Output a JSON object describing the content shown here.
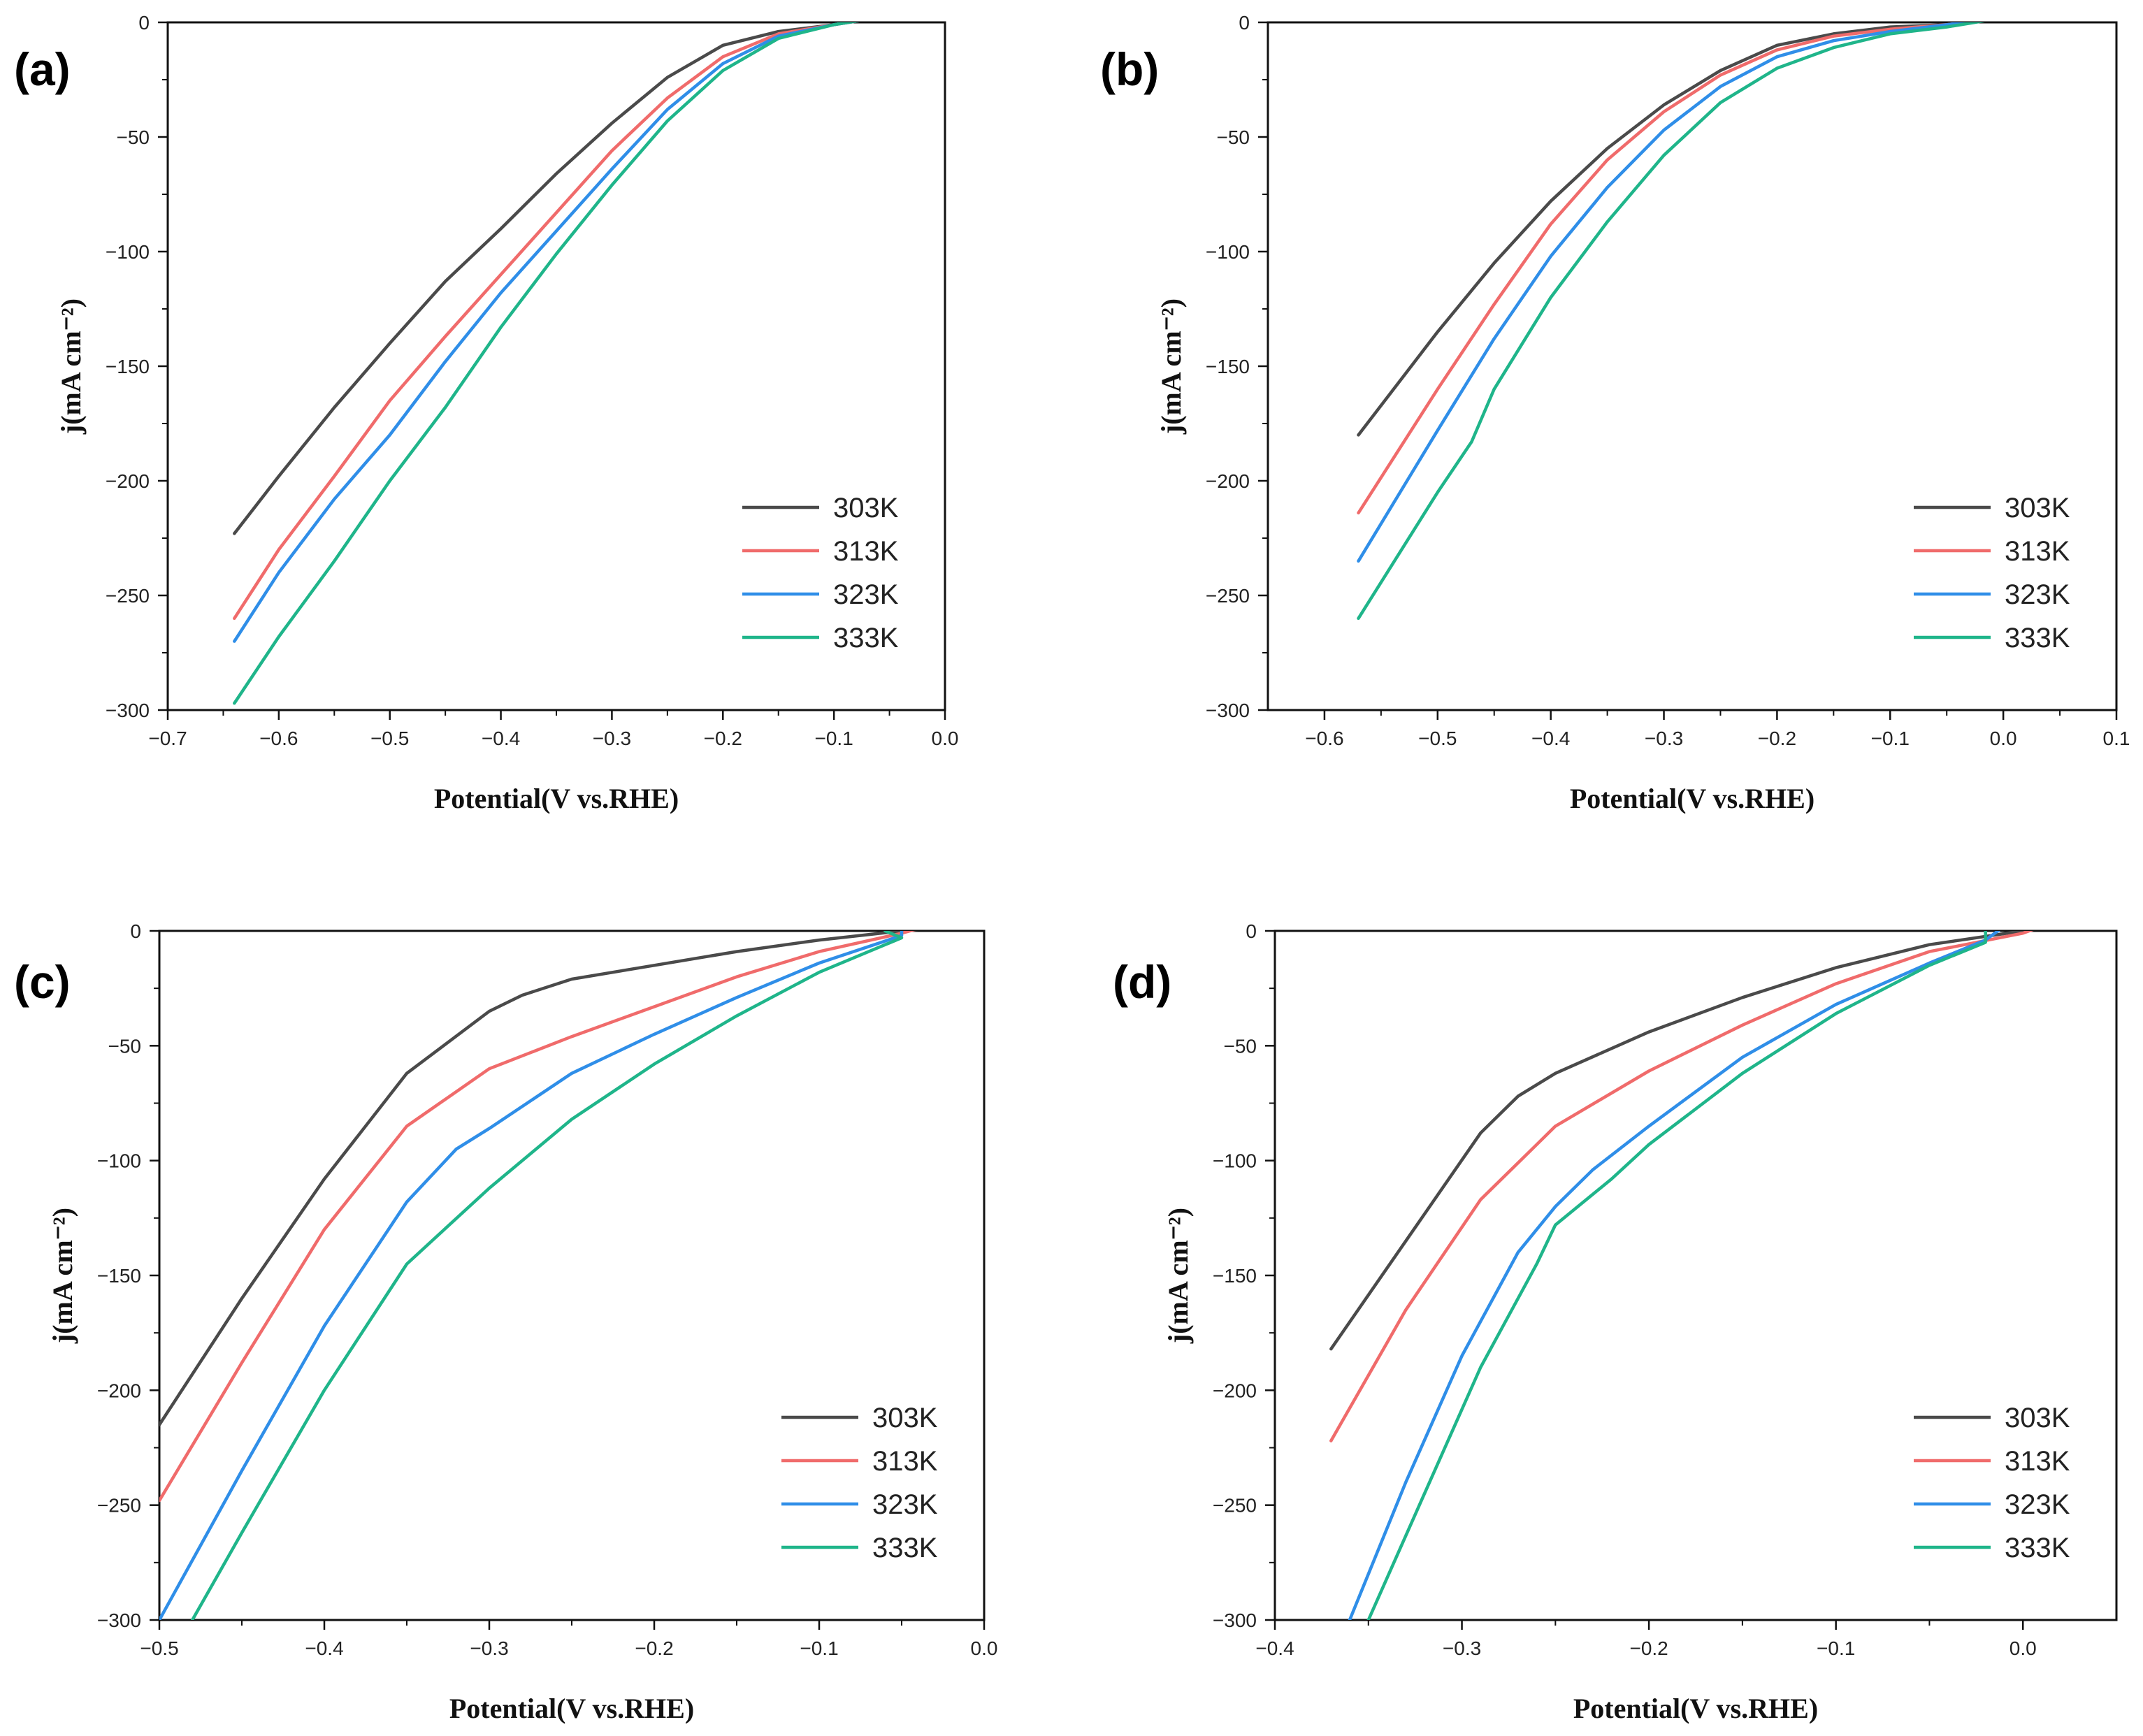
{
  "colors": {
    "303K": "#4a4a4a",
    "313K": "#f06b6b",
    "323K": "#2f8ee8",
    "333K": "#1fb58a"
  },
  "chart_data": [
    {
      "type": "line",
      "panel": "(a)",
      "xlabel": "Potential(V vs.RHE)",
      "ylabel": "j(mA cm⁻²)",
      "xlim": [
        -0.7,
        0.0
      ],
      "ylim": [
        -300,
        0
      ],
      "xticks": [
        -0.7,
        -0.6,
        -0.5,
        -0.4,
        -0.3,
        -0.2,
        -0.1,
        0.0
      ],
      "xtick_labels": [
        "−0.7",
        "−0.6",
        "−0.5",
        "−0.4",
        "−0.3",
        "−0.2",
        "−0.1",
        "0.0"
      ],
      "yticks": [
        0,
        -50,
        -100,
        -150,
        -200,
        -250,
        -300
      ],
      "ytick_labels": [
        "0",
        "−50",
        "−100",
        "−150",
        "−200",
        "−250",
        "−300"
      ],
      "legend_position": "lower-right",
      "series": [
        {
          "name": "303K",
          "color_key": "303K",
          "points": [
            [
              -0.64,
              -223
            ],
            [
              -0.6,
              -198
            ],
            [
              -0.55,
              -168
            ],
            [
              -0.5,
              -140
            ],
            [
              -0.45,
              -113
            ],
            [
              -0.4,
              -90
            ],
            [
              -0.35,
              -66
            ],
            [
              -0.3,
              -44
            ],
            [
              -0.25,
              -24
            ],
            [
              -0.2,
              -10
            ],
            [
              -0.15,
              -4
            ],
            [
              -0.1,
              -1
            ],
            [
              -0.06,
              2
            ]
          ]
        },
        {
          "name": "313K",
          "color_key": "313K",
          "points": [
            [
              -0.64,
              -260
            ],
            [
              -0.6,
              -230
            ],
            [
              -0.55,
              -198
            ],
            [
              -0.5,
              -165
            ],
            [
              -0.45,
              -137
            ],
            [
              -0.4,
              -110
            ],
            [
              -0.35,
              -83
            ],
            [
              -0.3,
              -56
            ],
            [
              -0.25,
              -33
            ],
            [
              -0.2,
              -15
            ],
            [
              -0.15,
              -5
            ],
            [
              -0.1,
              -1
            ],
            [
              -0.06,
              2
            ]
          ]
        },
        {
          "name": "323K",
          "color_key": "323K",
          "points": [
            [
              -0.64,
              -270
            ],
            [
              -0.6,
              -240
            ],
            [
              -0.55,
              -208
            ],
            [
              -0.5,
              -180
            ],
            [
              -0.45,
              -148
            ],
            [
              -0.4,
              -118
            ],
            [
              -0.35,
              -91
            ],
            [
              -0.3,
              -64
            ],
            [
              -0.25,
              -38
            ],
            [
              -0.2,
              -18
            ],
            [
              -0.15,
              -6
            ],
            [
              -0.1,
              -1
            ],
            [
              -0.06,
              2
            ]
          ]
        },
        {
          "name": "333K",
          "color_key": "333K",
          "points": [
            [
              -0.64,
              -297
            ],
            [
              -0.6,
              -268
            ],
            [
              -0.55,
              -235
            ],
            [
              -0.5,
              -200
            ],
            [
              -0.45,
              -168
            ],
            [
              -0.4,
              -133
            ],
            [
              -0.35,
              -101
            ],
            [
              -0.3,
              -71
            ],
            [
              -0.25,
              -43
            ],
            [
              -0.2,
              -21
            ],
            [
              -0.15,
              -7
            ],
            [
              -0.1,
              -1
            ],
            [
              -0.06,
              2
            ]
          ]
        }
      ]
    },
    {
      "type": "line",
      "panel": "(b)",
      "xlabel": "Potential(V vs.RHE)",
      "ylabel": "j(mA cm⁻²)",
      "xlim": [
        -0.65,
        0.1
      ],
      "ylim": [
        -300,
        0
      ],
      "xticks": [
        -0.6,
        -0.5,
        -0.4,
        -0.3,
        -0.2,
        -0.1,
        0.0,
        0.1
      ],
      "xtick_labels": [
        "−0.6",
        "−0.5",
        "−0.4",
        "−0.3",
        "−0.2",
        "−0.1",
        "0.0",
        "0.1"
      ],
      "yticks": [
        0,
        -50,
        -100,
        -150,
        -200,
        -250,
        -300
      ],
      "ytick_labels": [
        "0",
        "−50",
        "−100",
        "−150",
        "−200",
        "−250",
        "−300"
      ],
      "legend_position": "lower-right",
      "series": [
        {
          "name": "303K",
          "color_key": "303K",
          "points": [
            [
              -0.57,
              -180
            ],
            [
              -0.5,
              -135
            ],
            [
              -0.45,
              -105
            ],
            [
              -0.4,
              -78
            ],
            [
              -0.35,
              -55
            ],
            [
              -0.3,
              -36
            ],
            [
              -0.25,
              -21
            ],
            [
              -0.2,
              -10
            ],
            [
              -0.15,
              -5
            ],
            [
              -0.1,
              -2
            ],
            [
              -0.05,
              -1
            ],
            [
              0.0,
              2
            ]
          ]
        },
        {
          "name": "313K",
          "color_key": "313K",
          "points": [
            [
              -0.57,
              -214
            ],
            [
              -0.5,
              -160
            ],
            [
              -0.45,
              -123
            ],
            [
              -0.4,
              -88
            ],
            [
              -0.35,
              -60
            ],
            [
              -0.3,
              -39
            ],
            [
              -0.25,
              -23
            ],
            [
              -0.2,
              -12
            ],
            [
              -0.15,
              -6
            ],
            [
              -0.1,
              -3
            ],
            [
              -0.05,
              -1
            ],
            [
              0.0,
              2
            ]
          ]
        },
        {
          "name": "323K",
          "color_key": "323K",
          "points": [
            [
              -0.57,
              -235
            ],
            [
              -0.5,
              -178
            ],
            [
              -0.45,
              -138
            ],
            [
              -0.4,
              -102
            ],
            [
              -0.35,
              -72
            ],
            [
              -0.3,
              -47
            ],
            [
              -0.25,
              -28
            ],
            [
              -0.2,
              -15
            ],
            [
              -0.15,
              -8
            ],
            [
              -0.1,
              -4
            ],
            [
              -0.05,
              -1
            ],
            [
              0.0,
              2
            ]
          ]
        },
        {
          "name": "333K",
          "color_key": "333K",
          "points": [
            [
              -0.57,
              -260
            ],
            [
              -0.5,
              -205
            ],
            [
              -0.47,
              -183
            ],
            [
              -0.45,
              -160
            ],
            [
              -0.4,
              -120
            ],
            [
              -0.35,
              -87
            ],
            [
              -0.3,
              -58
            ],
            [
              -0.25,
              -35
            ],
            [
              -0.2,
              -20
            ],
            [
              -0.15,
              -11
            ],
            [
              -0.1,
              -5
            ],
            [
              -0.05,
              -2
            ],
            [
              0.0,
              2
            ]
          ]
        }
      ]
    },
    {
      "type": "line",
      "panel": "(c)",
      "xlabel": "Potential(V vs.RHE)",
      "ylabel": "j(mA cm⁻²)",
      "xlim": [
        -0.5,
        0.0
      ],
      "ylim": [
        -300,
        0
      ],
      "xticks": [
        -0.5,
        -0.4,
        -0.3,
        -0.2,
        -0.1,
        0.0
      ],
      "xtick_labels": [
        "−0.5",
        "−0.4",
        "−0.3",
        "−0.2",
        "−0.1",
        "0.0"
      ],
      "yticks": [
        0,
        -50,
        -100,
        -150,
        -200,
        -250,
        -300
      ],
      "ytick_labels": [
        "0",
        "−50",
        "−100",
        "−150",
        "−200",
        "−250",
        "−300"
      ],
      "legend_position": "lower-right",
      "series": [
        {
          "name": "303K",
          "color_key": "303K",
          "points": [
            [
              -0.5,
              -215
            ],
            [
              -0.45,
              -160
            ],
            [
              -0.4,
              -108
            ],
            [
              -0.35,
              -62
            ],
            [
              -0.3,
              -35
            ],
            [
              -0.28,
              -28
            ],
            [
              -0.25,
              -21
            ],
            [
              -0.2,
              -15
            ],
            [
              -0.15,
              -9
            ],
            [
              -0.1,
              -4
            ],
            [
              -0.05,
              0
            ],
            [
              -0.02,
              2
            ]
          ]
        },
        {
          "name": "313K",
          "color_key": "313K",
          "points": [
            [
              -0.5,
              -248
            ],
            [
              -0.45,
              -188
            ],
            [
              -0.4,
              -130
            ],
            [
              -0.35,
              -85
            ],
            [
              -0.3,
              -60
            ],
            [
              -0.25,
              -46
            ],
            [
              -0.2,
              -33
            ],
            [
              -0.15,
              -20
            ],
            [
              -0.1,
              -9
            ],
            [
              -0.05,
              -1
            ],
            [
              -0.04,
              1
            ]
          ]
        },
        {
          "name": "323K",
          "color_key": "323K",
          "points": [
            [
              -0.5,
              -300
            ],
            [
              -0.45,
              -235
            ],
            [
              -0.4,
              -172
            ],
            [
              -0.35,
              -118
            ],
            [
              -0.32,
              -95
            ],
            [
              -0.3,
              -86
            ],
            [
              -0.25,
              -62
            ],
            [
              -0.2,
              -45
            ],
            [
              -0.15,
              -29
            ],
            [
              -0.1,
              -14
            ],
            [
              -0.05,
              -2
            ],
            [
              -0.05,
              0
            ]
          ]
        },
        {
          "name": "333K",
          "color_key": "333K",
          "points": [
            [
              -0.48,
              -300
            ],
            [
              -0.45,
              -262
            ],
            [
              -0.4,
              -200
            ],
            [
              -0.35,
              -145
            ],
            [
              -0.3,
              -112
            ],
            [
              -0.25,
              -82
            ],
            [
              -0.2,
              -58
            ],
            [
              -0.15,
              -37
            ],
            [
              -0.1,
              -18
            ],
            [
              -0.05,
              -3
            ],
            [
              -0.06,
              0
            ]
          ]
        }
      ]
    },
    {
      "type": "line",
      "panel": "(d)",
      "xlabel": "Potential(V vs.RHE)",
      "ylabel": "j(mA cm⁻²)",
      "xlim": [
        -0.4,
        0.05
      ],
      "ylim": [
        -300,
        0
      ],
      "xticks": [
        -0.4,
        -0.3,
        -0.2,
        -0.1,
        0.0
      ],
      "xtick_labels": [
        "−0.4",
        "−0.3",
        "−0.2",
        "−0.1",
        "0.0"
      ],
      "yticks": [
        0,
        -50,
        -100,
        -150,
        -200,
        -250,
        -300
      ],
      "ytick_labels": [
        "0",
        "−50",
        "−100",
        "−150",
        "−200",
        "−250",
        "−300"
      ],
      "legend_position": "lower-right",
      "series": [
        {
          "name": "303K",
          "color_key": "303K",
          "points": [
            [
              -0.37,
              -182
            ],
            [
              -0.33,
              -135
            ],
            [
              -0.29,
              -88
            ],
            [
              -0.27,
              -72
            ],
            [
              -0.25,
              -62
            ],
            [
              -0.2,
              -44
            ],
            [
              -0.15,
              -29
            ],
            [
              -0.1,
              -16
            ],
            [
              -0.05,
              -6
            ],
            [
              0.0,
              0
            ],
            [
              0.01,
              2
            ]
          ]
        },
        {
          "name": "313K",
          "color_key": "313K",
          "points": [
            [
              -0.37,
              -222
            ],
            [
              -0.33,
              -165
            ],
            [
              -0.29,
              -117
            ],
            [
              -0.26,
              -93
            ],
            [
              -0.25,
              -85
            ],
            [
              -0.2,
              -61
            ],
            [
              -0.15,
              -41
            ],
            [
              -0.1,
              -23
            ],
            [
              -0.05,
              -9
            ],
            [
              0.0,
              -1
            ],
            [
              0.01,
              2
            ]
          ]
        },
        {
          "name": "323K",
          "color_key": "323K",
          "points": [
            [
              -0.36,
              -300
            ],
            [
              -0.33,
              -240
            ],
            [
              -0.3,
              -185
            ],
            [
              -0.27,
              -140
            ],
            [
              -0.25,
              -120
            ],
            [
              -0.23,
              -104
            ],
            [
              -0.2,
              -85
            ],
            [
              -0.15,
              -55
            ],
            [
              -0.1,
              -32
            ],
            [
              -0.05,
              -14
            ],
            [
              -0.02,
              -4
            ],
            [
              -0.01,
              2
            ]
          ]
        },
        {
          "name": "333K",
          "color_key": "333K",
          "points": [
            [
              -0.35,
              -300
            ],
            [
              -0.32,
              -245
            ],
            [
              -0.29,
              -190
            ],
            [
              -0.26,
              -145
            ],
            [
              -0.25,
              -128
            ],
            [
              -0.22,
              -108
            ],
            [
              -0.2,
              -93
            ],
            [
              -0.15,
              -62
            ],
            [
              -0.1,
              -36
            ],
            [
              -0.05,
              -15
            ],
            [
              -0.02,
              -5
            ],
            [
              -0.02,
              2
            ]
          ]
        }
      ]
    }
  ]
}
